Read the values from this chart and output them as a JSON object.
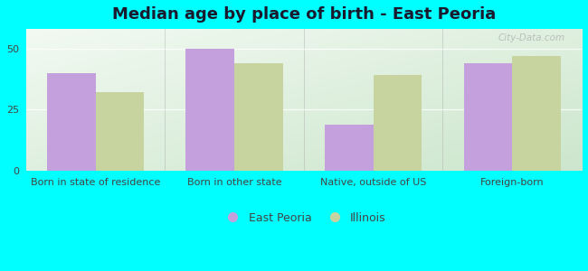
{
  "title": "Median age by place of birth - East Peoria",
  "categories": [
    "Born in state of residence",
    "Born in other state",
    "Native, outside of US",
    "Foreign-born"
  ],
  "east_peoria": [
    40,
    50,
    19,
    44
  ],
  "illinois": [
    32,
    44,
    39,
    47
  ],
  "bar_color_ep": "#c4a0dc",
  "bar_color_il": "#c8d4a0",
  "background_outer": "#00ffff",
  "yticks": [
    0,
    25,
    50
  ],
  "ylim": [
    0,
    58
  ],
  "legend_ep": "East Peoria",
  "legend_il": "Illinois",
  "title_fontsize": 13,
  "tick_fontsize": 8,
  "legend_fontsize": 9,
  "bar_width": 0.35,
  "watermark": "City-Data.com",
  "title_color": "#1a1a2e"
}
